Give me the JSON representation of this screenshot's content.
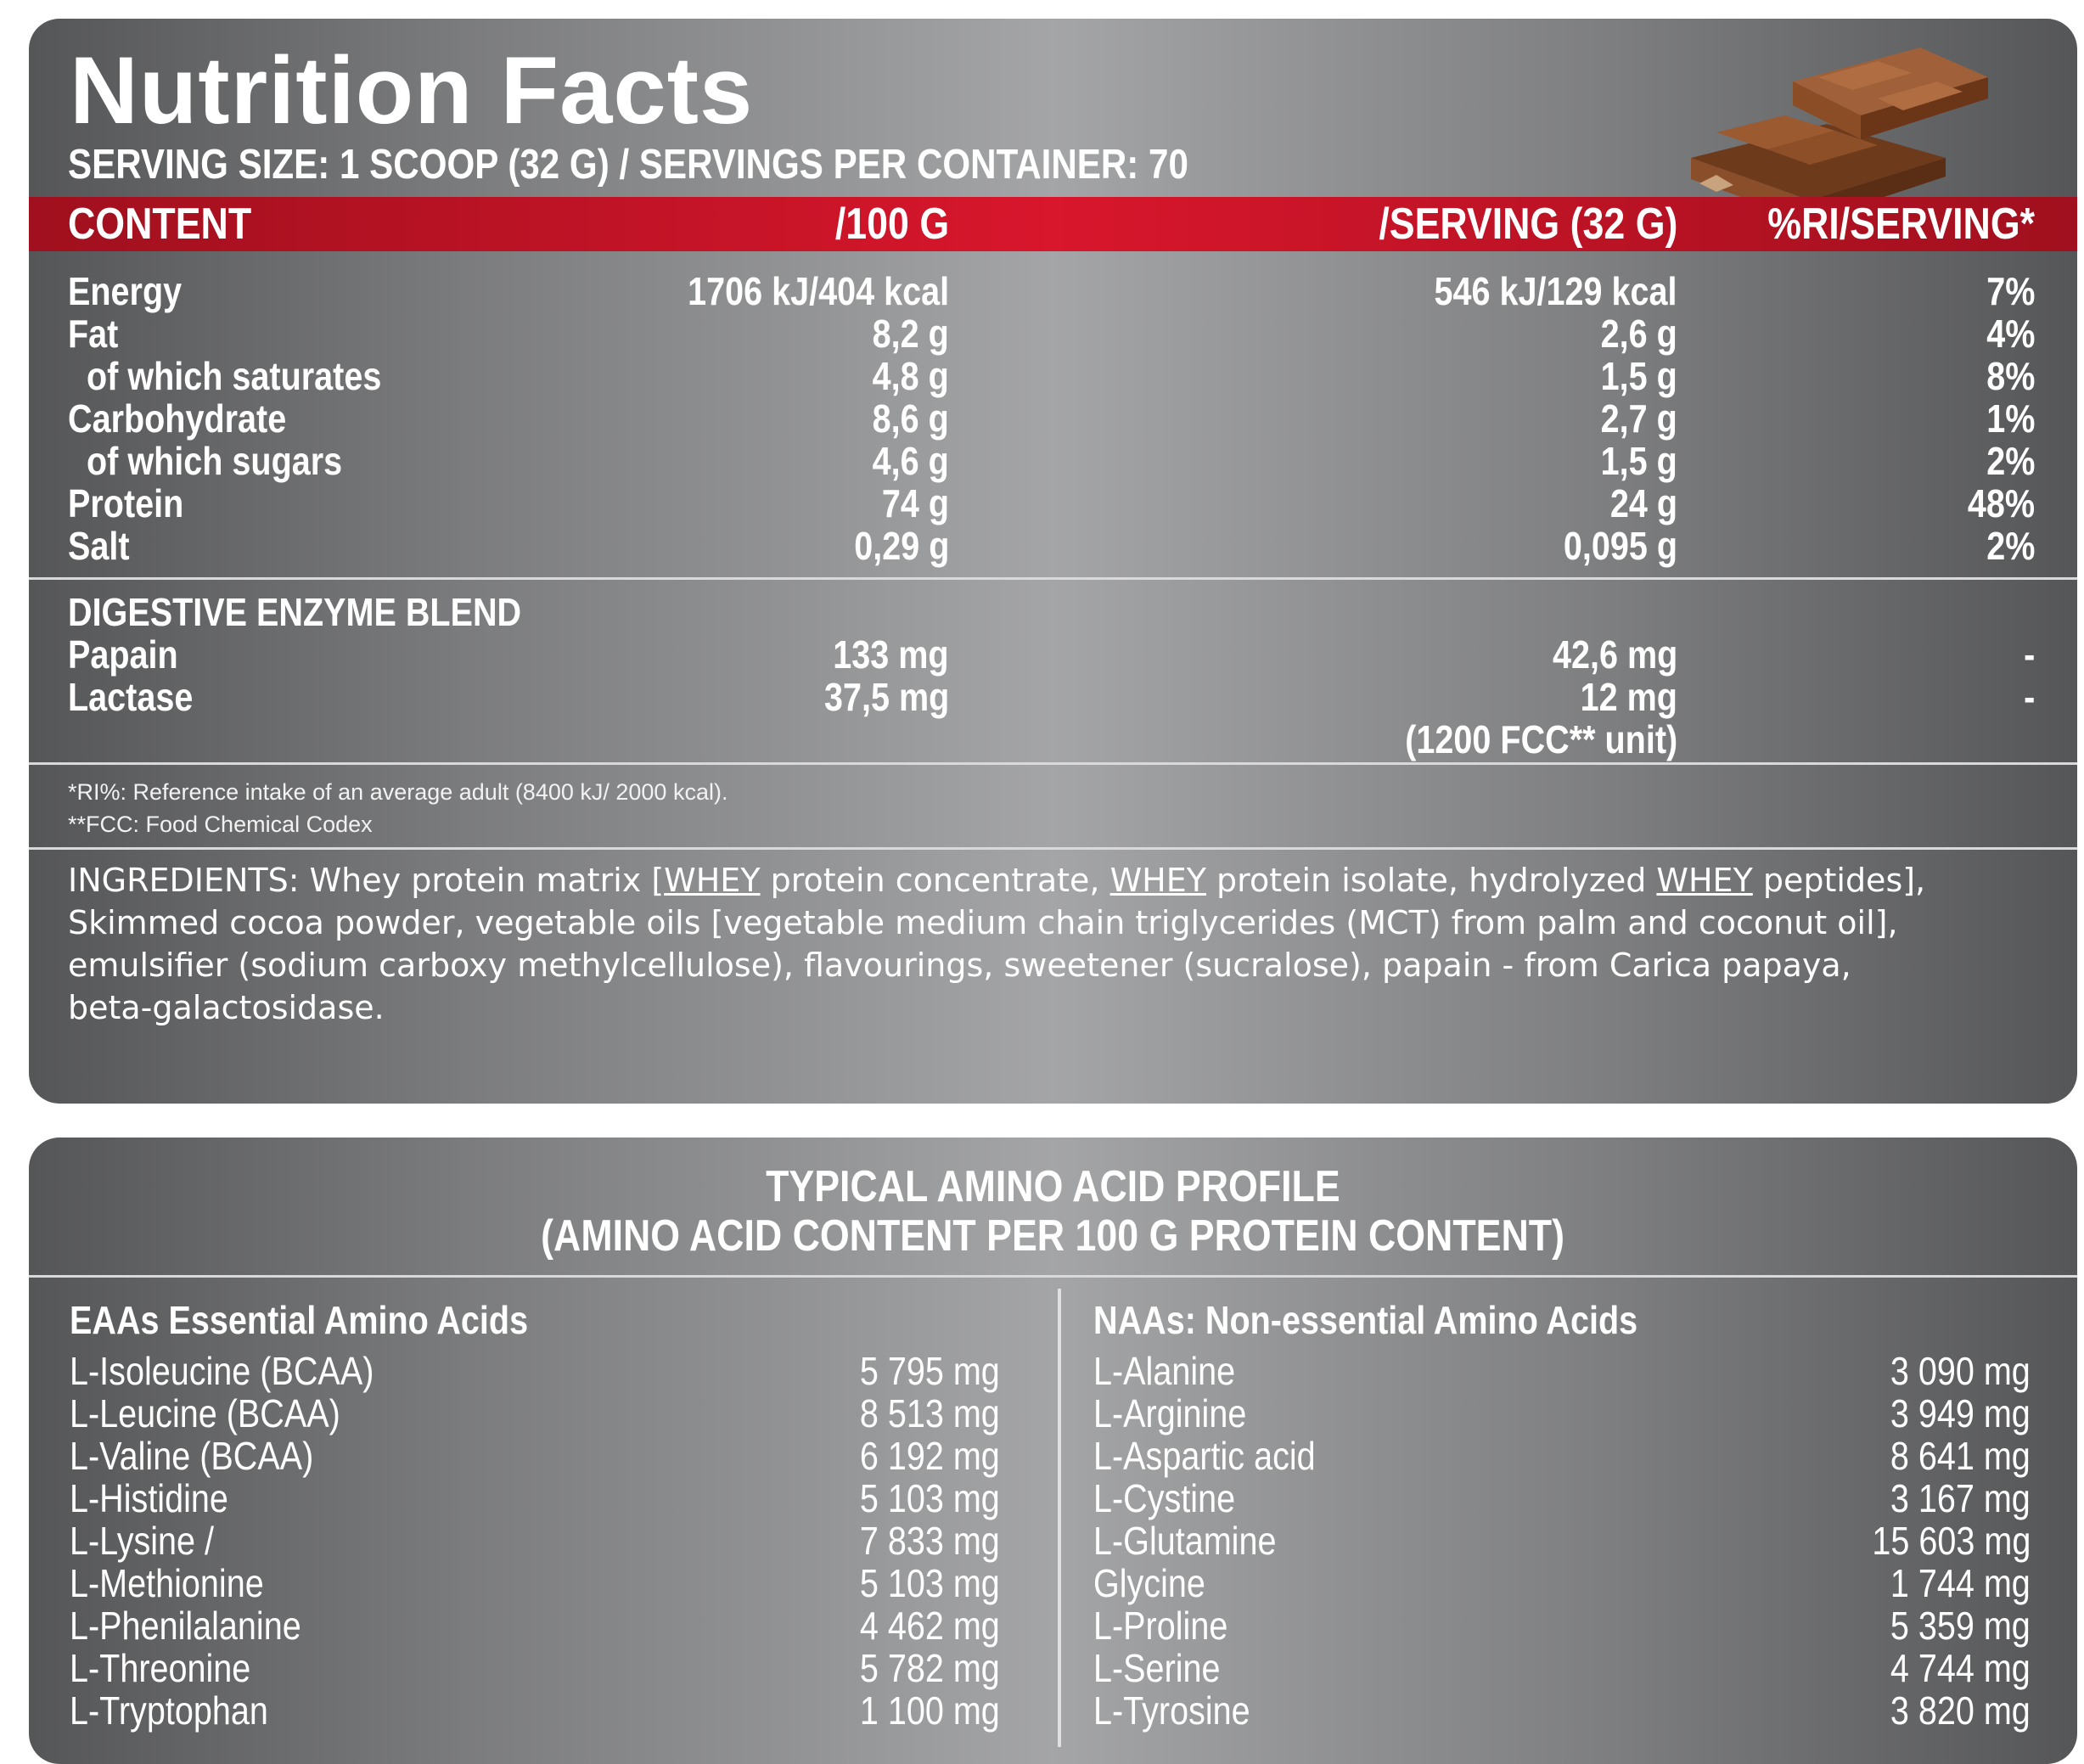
{
  "header": {
    "title": "Nutrition Facts",
    "serving": "SERVING SIZE: 1 SCOOP (32 G) / SERVINGS PER CONTAINER: 70"
  },
  "columns": {
    "content": "CONTENT",
    "per100": "/100 G",
    "perServing": "/SERVING (32 G)",
    "ri": "%RI/SERVING*"
  },
  "nutrients": [
    {
      "name": "Energy",
      "per100": "1706 kJ/404 kcal",
      "serving": "546 kJ/129 kcal",
      "ri": "7%"
    },
    {
      "name": "Fat",
      "per100": "8,2 g",
      "serving": "2,6 g",
      "ri": "4%"
    },
    {
      "name": "of which saturates",
      "per100": "4,8 g",
      "serving": "1,5 g",
      "ri": "8%"
    },
    {
      "name": "Carbohydrate",
      "per100": "8,6 g",
      "serving": "2,7 g",
      "ri": "1%"
    },
    {
      "name": "of which sugars",
      "per100": "4,6 g",
      "serving": "1,5 g",
      "ri": "2%"
    },
    {
      "name": "Protein",
      "per100": "74 g",
      "serving": "24 g",
      "ri": "48%"
    },
    {
      "name": "Salt",
      "per100": "0,29 g",
      "serving": "0,095 g",
      "ri": "2%"
    }
  ],
  "enzymes": {
    "title": "DIGESTIVE ENZYME BLEND",
    "rows": [
      {
        "name": "Papain",
        "per100": "133 mg",
        "serving": "42,6 mg",
        "ri": "-"
      },
      {
        "name": "Lactase",
        "per100": "37,5 mg",
        "serving": "12 mg",
        "ri": "-"
      }
    ],
    "lactase_unit": "(1200 FCC** unit)"
  },
  "footnotes": [
    "*RI%: Reference intake of an average adult (8400 kJ/ 2000 kcal).",
    "**FCC: Food Chemical Codex"
  ],
  "ingredients": {
    "l1a": "INGREDIENTS: Whey protein matrix [",
    "l1b": "WHEY",
    "l1c": " protein concentrate, ",
    "l1d": "WHEY",
    "l1e": " protein isolate, hydrolyzed ",
    "l1f": "WHEY",
    "l1g": " peptides],",
    "l2": "Skimmed cocoa powder, vegetable oils [vegetable medium chain triglycerides (MCT) from palm and coconut oil],",
    "l3": "emulsifier (sodium carboxy methylcellulose), flavourings, sweetener (sucralose), papain - from Carica papaya,",
    "l4": "beta-galactosidase."
  },
  "amino": {
    "title1": "TYPICAL AMINO ACID PROFILE",
    "title2": "(AMINO ACID CONTENT PER 100 G PROTEIN CONTENT)",
    "eaa_title": "EAAs Essential Amino Acids",
    "naa_title": "NAAs: Non-essential Amino Acids",
    "eaa": [
      {
        "name": "L-Isoleucine (BCAA)",
        "value": "5 795 mg"
      },
      {
        "name": "L-Leucine (BCAA)",
        "value": "8 513 mg"
      },
      {
        "name": "L-Valine (BCAA)",
        "value": "6 192 mg"
      },
      {
        "name": "L-Histidine",
        "value": "5 103 mg"
      },
      {
        "name": "L-Lysine /",
        "value": "7 833 mg"
      },
      {
        "name": "L-Methionine",
        "value": "5 103 mg"
      },
      {
        "name": "L-Phenilalanine",
        "value": "4 462 mg"
      },
      {
        "name": "L-Threonine",
        "value": "5 782 mg"
      },
      {
        "name": "L-Tryptophan",
        "value": "1 100 mg"
      }
    ],
    "naa": [
      {
        "name": "L-Alanine",
        "value": "3 090 mg"
      },
      {
        "name": "L-Arginine",
        "value": "3 949 mg"
      },
      {
        "name": "L-Aspartic acid",
        "value": "8 641 mg"
      },
      {
        "name": "L-Cystine",
        "value": "3 167 mg"
      },
      {
        "name": "L-Glutamine",
        "value": "15 603 mg"
      },
      {
        "name": "Glycine",
        "value": "1 744 mg"
      },
      {
        "name": "L-Proline",
        "value": "5 359 mg"
      },
      {
        "name": "L-Serine",
        "value": "4 744 mg"
      },
      {
        "name": "L-Tyrosine",
        "value": "3 820 mg"
      }
    ]
  }
}
